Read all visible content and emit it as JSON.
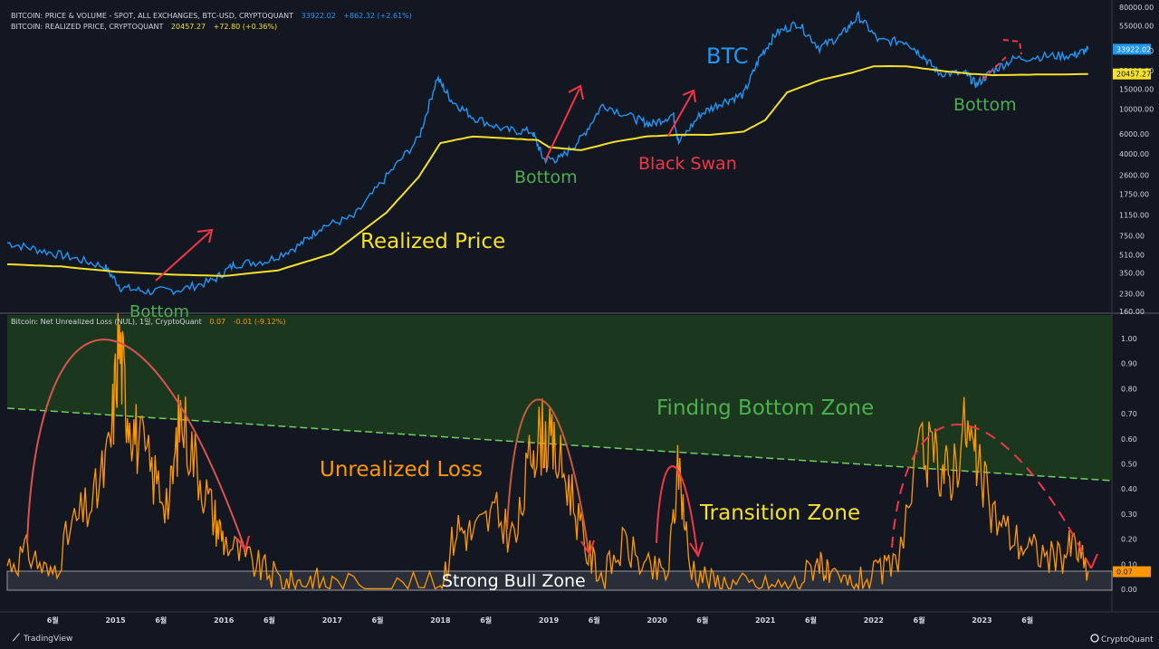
{
  "chart_data": [
    {
      "type": "line",
      "scale": "log",
      "legend": [
        {
          "text": "BITCOIN: PRICE & VOLUME - SPOT, ALL EXCHANGES, BTC-USD, CRYPTOQUANT",
          "value": "33922.02",
          "change": "+862.32 (+2.61%)",
          "color": "#2196f3"
        },
        {
          "text": "BITCOIN: REALIZED PRICE, CRYPTOQUANT",
          "value": "20457.27",
          "change": "+72.80 (+0.36%)",
          "color": "#f5e02a"
        }
      ],
      "y_ticks": [
        80000,
        55000,
        33000,
        22000,
        15000,
        10000,
        6000,
        4000,
        2600,
        1750,
        1150,
        750,
        510,
        350,
        230,
        160
      ],
      "y_tick_labels": [
        "80000.00",
        "55000.00",
        "33000.00",
        "22000.00",
        "15000.00",
        "10000.00",
        "6000.00",
        "4000.00",
        "2600.00",
        "1750.00",
        "1150.00",
        "750.00",
        "510.00",
        "350.00",
        "230.00",
        "160.00"
      ],
      "ylim": [
        160,
        80000
      ],
      "series": [
        {
          "name": "BTC",
          "color": "#2196f3",
          "x": [
            2014.0,
            2014.3,
            2014.6,
            2014.9,
            2015.05,
            2015.3,
            2015.6,
            2015.9,
            2016.1,
            2016.4,
            2016.7,
            2016.9,
            2017.2,
            2017.5,
            2017.8,
            2017.97,
            2018.1,
            2018.3,
            2018.6,
            2018.85,
            2018.95,
            2019.1,
            2019.3,
            2019.5,
            2019.8,
            2019.95,
            2020.15,
            2020.2,
            2020.4,
            2020.6,
            2020.8,
            2020.95,
            2021.1,
            2021.3,
            2021.5,
            2021.7,
            2021.86,
            2022.05,
            2022.3,
            2022.45,
            2022.6,
            2022.85,
            2022.95,
            2023.1,
            2023.3,
            2023.6,
            2023.85,
            2023.98
          ],
          "values": [
            650,
            560,
            480,
            400,
            260,
            240,
            250,
            300,
            420,
            450,
            620,
            900,
            1100,
            2500,
            5500,
            19000,
            12000,
            8500,
            6500,
            6300,
            3600,
            3600,
            5500,
            11000,
            8200,
            7300,
            9000,
            5000,
            9000,
            11500,
            13500,
            29000,
            47000,
            58000,
            35000,
            45000,
            67000,
            40000,
            40000,
            30000,
            21000,
            20500,
            16500,
            22000,
            28000,
            29500,
            30000,
            33922
          ],
          "last_label": "33922.02"
        },
        {
          "name": "Realized Price",
          "color": "#f5e02a",
          "x": [
            2014.0,
            2014.5,
            2015.0,
            2015.5,
            2016.0,
            2016.5,
            2017.0,
            2017.5,
            2017.8,
            2018.0,
            2018.3,
            2018.6,
            2018.9,
            2019.0,
            2019.3,
            2019.6,
            2019.9,
            2020.2,
            2020.5,
            2020.8,
            2021.0,
            2021.2,
            2021.5,
            2021.8,
            2022.0,
            2022.3,
            2022.6,
            2022.9,
            2023.1,
            2023.5,
            2023.98
          ],
          "values": [
            420,
            400,
            360,
            340,
            330,
            370,
            520,
            1200,
            2500,
            5000,
            5700,
            5500,
            5300,
            4600,
            4300,
            5100,
            5700,
            5900,
            5900,
            6300,
            8000,
            14000,
            18000,
            21000,
            24000,
            24000,
            22000,
            20500,
            20000,
            20200,
            20457
          ],
          "last_label": "20457.27"
        }
      ],
      "annotations": [
        {
          "text": "BTC",
          "color": "#2196f3"
        },
        {
          "text": "Realized Price",
          "color": "#f5e02a"
        },
        {
          "text": "Bottom",
          "color": "#4caf50"
        },
        {
          "text": "Bottom",
          "color": "#4caf50"
        },
        {
          "text": "Black Swan",
          "color": "#f23645"
        },
        {
          "text": "Bottom",
          "color": "#4caf50"
        }
      ]
    },
    {
      "type": "line",
      "legend": [
        {
          "text": "Bitcoin: Net Unrealized Loss (NUL), 1일, CryptoQuant",
          "value": "0.07",
          "change": "-0.01 (-9.12%)",
          "color": "#ff9800"
        }
      ],
      "y_ticks": [
        1.0,
        0.9,
        0.8,
        0.7,
        0.6,
        0.5,
        0.4,
        0.3,
        0.2,
        0.1,
        0.0
      ],
      "y_tick_labels": [
        "1.00",
        "0.90",
        "0.80",
        "0.70",
        "0.60",
        "0.50",
        "0.40",
        "0.30",
        "0.20",
        "0.10",
        "0.00"
      ],
      "ylim": [
        -0.02,
        1.05
      ],
      "series": [
        {
          "name": "Unrealized Loss",
          "color": "#ff9800",
          "x": [
            2014.0,
            2014.2,
            2014.4,
            2014.6,
            2014.8,
            2014.95,
            2015.03,
            2015.1,
            2015.2,
            2015.35,
            2015.5,
            2015.6,
            2015.75,
            2015.9,
            2016.0,
            2016.2,
            2016.4,
            2016.6,
            2016.8,
            2017.0,
            2017.5,
            2018.0,
            2018.15,
            2018.3,
            2018.5,
            2018.7,
            2018.85,
            2018.95,
            2019.05,
            2019.2,
            2019.35,
            2019.5,
            2019.7,
            2019.9,
            2020.1,
            2020.2,
            2020.3,
            2020.5,
            2020.7,
            2021.0,
            2021.3,
            2021.5,
            2021.6,
            2021.8,
            2022.0,
            2022.2,
            2022.45,
            2022.6,
            2022.7,
            2022.85,
            2022.95,
            2023.1,
            2023.3,
            2023.5,
            2023.7,
            2023.85,
            2023.98
          ],
          "values": [
            0.1,
            0.15,
            0.05,
            0.25,
            0.35,
            0.55,
            1.0,
            0.75,
            0.6,
            0.45,
            0.35,
            0.7,
            0.5,
            0.3,
            0.2,
            0.12,
            0.07,
            0.02,
            0.04,
            0.02,
            0.01,
            0.02,
            0.25,
            0.22,
            0.3,
            0.2,
            0.58,
            0.62,
            0.55,
            0.4,
            0.15,
            0.05,
            0.18,
            0.08,
            0.06,
            0.5,
            0.1,
            0.03,
            0.02,
            0.01,
            0.02,
            0.13,
            0.03,
            0.02,
            0.05,
            0.1,
            0.55,
            0.5,
            0.45,
            0.65,
            0.5,
            0.3,
            0.2,
            0.15,
            0.12,
            0.18,
            0.07
          ],
          "last_label": "0.07"
        }
      ],
      "zones": [
        {
          "name": "Finding Bottom Zone",
          "color": "#4caf50"
        },
        {
          "name": "Transition Zone",
          "color": "#f5e02a"
        },
        {
          "name": "Strong Bull Zone",
          "color": "#ffffff"
        }
      ],
      "annotations": [
        {
          "text": "Unrealized Loss",
          "color": "#ff9800"
        },
        {
          "text": "Finding Bottom Zone",
          "color": "#4caf50"
        },
        {
          "text": "Transition Zone",
          "color": "#f5e02a"
        },
        {
          "text": "Strong Bull Zone",
          "color": "#ffffff"
        }
      ]
    }
  ],
  "x_axis": {
    "ticks": [
      {
        "label": "6월",
        "x": 2014.42
      },
      {
        "label": "2015",
        "x": 2015.0
      },
      {
        "label": "6월",
        "x": 2015.42
      },
      {
        "label": "2016",
        "x": 2016.0
      },
      {
        "label": "6월",
        "x": 2016.42
      },
      {
        "label": "2017",
        "x": 2017.0
      },
      {
        "label": "6월",
        "x": 2017.42
      },
      {
        "label": "2018",
        "x": 2018.0
      },
      {
        "label": "6월",
        "x": 2018.42
      },
      {
        "label": "2019",
        "x": 2019.0
      },
      {
        "label": "6월",
        "x": 2019.42
      },
      {
        "label": "2020",
        "x": 2020.0
      },
      {
        "label": "6월",
        "x": 2020.42
      },
      {
        "label": "2021",
        "x": 2021.0
      },
      {
        "label": "6월",
        "x": 2021.42
      },
      {
        "label": "2022",
        "x": 2022.0
      },
      {
        "label": "6월",
        "x": 2022.42
      },
      {
        "label": "2023",
        "x": 2023.0
      },
      {
        "label": "6월",
        "x": 2023.42
      }
    ]
  },
  "footer": {
    "left": "TradingView",
    "right": "CryptoQuant"
  }
}
